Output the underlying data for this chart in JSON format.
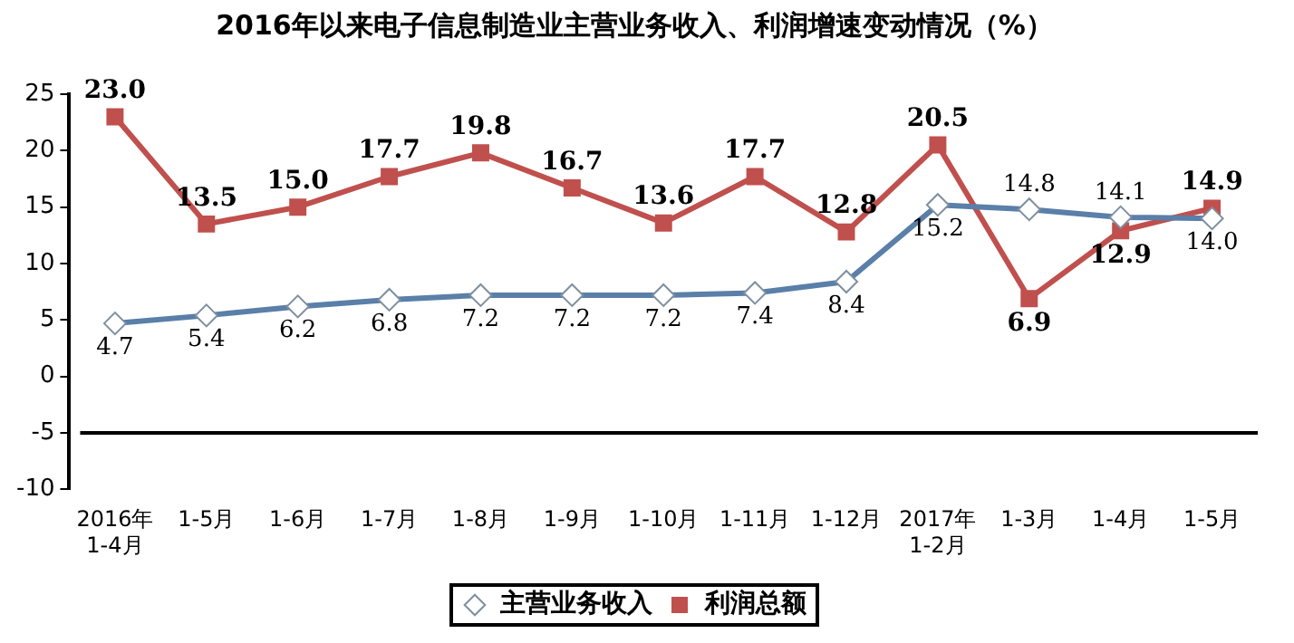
{
  "chart_data": {
    "type": "line",
    "title": "2016年以来电子信息制造业主营业务收入、利润增速变动情况（%）",
    "categories": [
      "2016年\n1-4月",
      "1-5月",
      "1-6月",
      "1-7月",
      "1-8月",
      "1-9月",
      "1-10月",
      "1-11月",
      "1-12月",
      "2017年\n1-2月",
      "1-3月",
      "1-4月",
      "1-5月"
    ],
    "series": [
      {
        "name": "主营业务收入",
        "color": "#5a7fa8",
        "marker": "diamond",
        "values": [
          4.7,
          5.4,
          6.2,
          6.8,
          7.2,
          7.2,
          7.2,
          7.4,
          8.4,
          15.2,
          14.8,
          14.1,
          14.0
        ],
        "value_labels": [
          "4.7",
          "5.4",
          "6.2",
          "6.8",
          "7.2",
          "7.2",
          "7.2",
          "7.4",
          "8.4",
          "15.2",
          "14.8",
          "14.1",
          "14.0"
        ]
      },
      {
        "name": "利润总额",
        "color": "#c0504d",
        "marker": "square",
        "values": [
          23.0,
          13.5,
          15.0,
          17.7,
          19.8,
          16.7,
          13.6,
          17.7,
          12.8,
          20.5,
          6.9,
          12.9,
          14.9
        ],
        "value_labels": [
          "23.0",
          "13.5",
          "15.0",
          "17.7",
          "19.8",
          "16.7",
          "13.6",
          "17.7",
          "12.8",
          "20.5",
          "6.9",
          "12.9",
          "14.9"
        ]
      }
    ],
    "ylim": [
      -10,
      25
    ],
    "yticks": [
      -10,
      -5,
      0,
      5,
      10,
      15,
      20,
      25
    ],
    "ref_lines": [
      {
        "axis": "y",
        "value": -5,
        "color": "#000000"
      }
    ],
    "grid": false,
    "legend": "bottom",
    "line_style": "solid"
  }
}
